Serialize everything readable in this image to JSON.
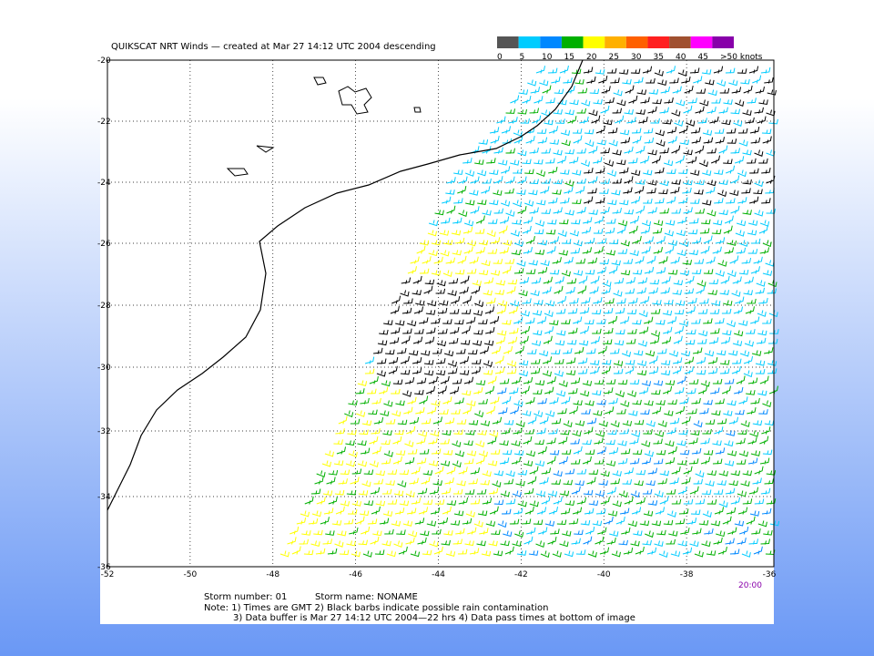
{
  "header": {
    "title": "QUIKSCAT NRT Winds — created at Mar 27 14:12 UTC 2004 descending"
  },
  "legend": {
    "labels": [
      "0",
      "5",
      "10",
      "15",
      "20",
      "25",
      "30",
      "35",
      "40",
      "45",
      ">50 knots"
    ],
    "colors": [
      "#555555",
      "#00ccff",
      "#0088ff",
      "#00b000",
      "#ffff00",
      "#ffb000",
      "#ff6000",
      "#ff2020",
      "#a05030",
      "#ff00ff",
      "#8800aa"
    ]
  },
  "axes": {
    "latitudes": [
      "-20",
      "-22",
      "-24",
      "-26",
      "-28",
      "-30",
      "-32",
      "-34",
      "-36"
    ],
    "longitudes": [
      "-52",
      "-50",
      "-48",
      "-46",
      "-44",
      "-42",
      "-40",
      "-38",
      "-36"
    ]
  },
  "pass_time": "20:00",
  "notes": {
    "storm_number": "Storm number: 01",
    "storm_name": "Storm name: NONAME",
    "line1": "Note: 1) Times are GMT  2) Black barbs indicate possible rain contamination",
    "line2": "3) Data buffer is Mar 27 14:12 UTC 2004—22 hrs 4) Data pass times at bottom of image"
  }
}
